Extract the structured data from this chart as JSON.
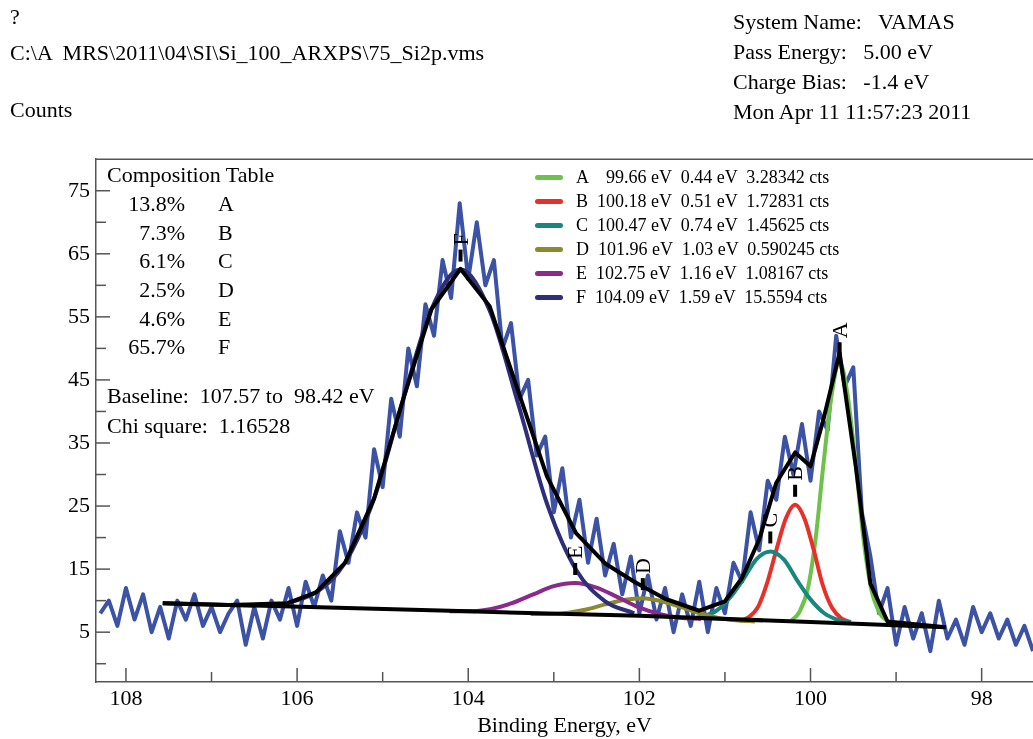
{
  "chart_data": {
    "type": "line",
    "title": "?",
    "subtitle": "C:\\A  MRS\\2011\\04\\SI\\Si_100_ARXPS\\75_Si2p.vms",
    "xlabel": "Binding Energy, eV",
    "ylabel": "Counts",
    "xlim": [
      108.35,
      97.4
    ],
    "xticks": [
      108,
      {
        "value": 107,
        "label": null
      },
      106,
      {
        "value": 105,
        "label": null
      },
      104,
      {
        "value": 103,
        "label": null
      },
      102,
      {
        "value": 101,
        "label": null
      },
      100,
      {
        "value": 99,
        "label": null
      },
      98
    ],
    "ylim": [
      -2.9,
      80
    ],
    "yticks": [
      {
        "value": 0,
        "label": null
      },
      5,
      {
        "value": 10,
        "label": null
      },
      15,
      {
        "value": 20,
        "label": null
      },
      25,
      {
        "value": 30,
        "label": null
      },
      35,
      {
        "value": 40,
        "label": null
      },
      45,
      {
        "value": 50,
        "label": null
      },
      55,
      {
        "value": 60,
        "label": null
      },
      65,
      {
        "value": 70,
        "label": null
      },
      75
    ],
    "grid": false,
    "legend": "top",
    "series": [
      {
        "color": "#3b52a5",
        "x": [
          108.3,
          108.2,
          108.1,
          108.0,
          107.9,
          107.8,
          107.7,
          107.6,
          107.5,
          107.4,
          107.3,
          107.2,
          107.1,
          107.0,
          106.9,
          106.8,
          106.7,
          106.6,
          106.5,
          106.4,
          106.3,
          106.2,
          106.1,
          106.0,
          105.9,
          105.8,
          105.7,
          105.6,
          105.5,
          105.4,
          105.3,
          105.2,
          105.1,
          105.0,
          104.9,
          104.8,
          104.7,
          104.6,
          104.5,
          104.4,
          104.3,
          104.2,
          104.1,
          104.0,
          103.9,
          103.8,
          103.7,
          103.6,
          103.5,
          103.4,
          103.3,
          103.2,
          103.1,
          103.0,
          102.9,
          102.8,
          102.7,
          102.6,
          102.5,
          102.4,
          102.3,
          102.2,
          102.1,
          102.0,
          101.9,
          101.8,
          101.7,
          101.6,
          101.5,
          101.4,
          101.3,
          101.2,
          101.1,
          101.0,
          100.9,
          100.8,
          100.7,
          100.6,
          100.5,
          100.4,
          100.3,
          100.2,
          100.1,
          100.0,
          99.9,
          99.8,
          99.7,
          99.6,
          99.5,
          99.4,
          99.3,
          99.2,
          99.1,
          99.0,
          98.9,
          98.8,
          98.7,
          98.6,
          98.5,
          98.4,
          98.3,
          98.2,
          98.1,
          98.0,
          97.9,
          97.8,
          97.7,
          97.6,
          97.5,
          97.4
        ],
        "values": [
          8,
          10,
          6,
          12,
          7,
          11,
          5,
          9,
          4,
          10,
          7,
          11,
          6,
          9,
          5,
          8,
          10,
          3,
          9,
          4,
          10,
          7,
          12,
          6,
          13,
          9,
          14,
          10,
          21,
          16,
          24,
          20,
          34,
          28,
          42,
          36,
          50,
          44,
          57,
          52,
          64,
          58,
          73,
          61,
          70,
          60,
          64,
          50,
          54,
          42,
          45,
          33,
          36,
          24,
          31,
          20,
          26,
          16,
          23,
          14,
          19,
          11,
          17,
          8,
          14,
          7,
          12,
          5,
          11,
          6,
          13,
          5,
          12,
          8,
          16,
          13,
          24,
          18,
          29,
          26,
          36,
          30,
          38,
          29,
          40,
          37,
          52,
          44,
          47,
          24,
          17,
          8,
          12,
          3,
          9,
          4,
          8,
          2,
          10,
          4,
          7,
          3,
          9,
          5,
          8,
          4,
          7,
          3,
          6,
          2
        ]
      },
      {
        "name": "A    99.66 eV  0.44 eV  3.28342 cts",
        "color": "#6cc24a",
        "x": [
          100.22,
          100.13,
          100.03,
          99.94,
          99.85,
          99.75,
          99.66,
          99.57,
          99.47,
          99.38,
          99.29,
          99.19,
          99.1
        ],
        "values": [
          6.9,
          8.2,
          12.0,
          19.9,
          31.5,
          42.9,
          47.8,
          42.9,
          31.5,
          19.7,
          11.8,
          8.0,
          6.7
        ]
      },
      {
        "name": "B  100.18 eV  0.51 eV  1.72831 cts",
        "color": "#e8302a",
        "x": [
          100.83,
          100.72,
          100.61,
          100.51,
          100.4,
          100.29,
          100.18,
          100.07,
          99.96,
          99.86,
          99.75,
          99.64,
          99.53
        ],
        "values": [
          6.8,
          7.4,
          9.1,
          12.7,
          18.0,
          23.0,
          25.2,
          23.0,
          17.9,
          12.6,
          8.9,
          7.2,
          6.6
        ]
      },
      {
        "name": "C  100.47 eV  0.74 eV  1.45625 cts",
        "color": "#17877f",
        "x": [
          101.41,
          101.26,
          101.1,
          100.94,
          100.78,
          100.63,
          100.47,
          100.31,
          100.16,
          100.0,
          99.84,
          99.69,
          99.53
        ],
        "values": [
          7.1,
          7.5,
          8.4,
          10.5,
          13.5,
          16.6,
          17.8,
          16.5,
          13.3,
          10.2,
          8.0,
          7.0,
          6.5
        ]
      },
      {
        "name": "D  101.96 eV  1.03 eV  0.590245 cts",
        "color": "#8b8b2e",
        "x": [
          103.27,
          103.05,
          102.83,
          102.62,
          102.4,
          102.18,
          101.96,
          101.74,
          101.52,
          101.3,
          101.09,
          100.87,
          100.65
        ],
        "values": [
          7.9,
          7.9,
          8.1,
          8.6,
          9.4,
          10.1,
          10.4,
          9.9,
          9.0,
          8.0,
          7.3,
          6.9,
          6.7
        ]
      },
      {
        "name": "E  102.75 eV  1.16 eV  1.08167 cts",
        "color": "#8b2a8a",
        "x": [
          104.22,
          103.98,
          103.73,
          103.49,
          103.24,
          103.0,
          102.75,
          102.51,
          102.26,
          102.02,
          101.77,
          101.53,
          101.28
        ],
        "values": [
          8.3,
          8.3,
          8.7,
          9.6,
          11.0,
          12.3,
          12.8,
          12.1,
          10.6,
          9.0,
          7.9,
          7.3,
          7.1
        ]
      },
      {
        "name": "F  104.09 eV  1.59 eV  15.5594 cts",
        "color": "#2e2e7a",
        "x": [
          106.11,
          105.78,
          105.44,
          105.1,
          104.77,
          104.43,
          104.09,
          103.75,
          103.41,
          103.08,
          102.74,
          102.4,
          102.06
        ],
        "values": [
          9.6,
          11.3,
          16.0,
          26.2,
          41.5,
          56.2,
          62.5,
          56.0,
          40.9,
          25.4,
          14.9,
          9.9,
          8.0
        ]
      },
      {
        "color": "#000000",
        "x": [
          107.57,
          106.8,
          106.11,
          105.78,
          105.44,
          105.1,
          104.77,
          104.43,
          104.09,
          103.75,
          103.41,
          103.08,
          102.74,
          102.4,
          102.06,
          101.7,
          101.3,
          101.0,
          100.8,
          100.6,
          100.4,
          100.18,
          100.0,
          99.85,
          99.66,
          99.47,
          99.3,
          99.1,
          98.42
        ],
        "values": [
          9.6,
          9.3,
          9.6,
          11.3,
          16.0,
          26.2,
          41.5,
          56.2,
          62.6,
          56.7,
          43.0,
          29.7,
          20.7,
          15.9,
          13.0,
          10.3,
          8.4,
          9.9,
          13.6,
          19.7,
          28.7,
          33.5,
          31.3,
          38.7,
          49.3,
          31.2,
          12.7,
          6.7,
          5.8
        ]
      },
      {
        "color": "#000000",
        "x": [
          107.57,
          104,
          102,
          100,
          98.42
        ],
        "values": [
          9.6,
          8.3,
          7.6,
          6.6,
          5.8
        ]
      }
    ],
    "annotations": [
      "System Name:   VAMAS",
      "Pass Energy:   5.00 eV",
      "Charge Bias:   -1.4 eV",
      "Mon Apr 11 11:57:23 2011",
      "Composition Table",
      "13.8%  A",
      "7.3%  B",
      "6.1%  C",
      "2.5%  D",
      "4.6%  E",
      "65.7%  F",
      "Baseline:  107.57 to  98.42 eV",
      "Chi square:  1.16528",
      {
        "text": "A",
        "x": 99.66,
        "y": 47.8
      },
      {
        "text": "B",
        "x": 100.18,
        "y": 25.2
      },
      {
        "text": "C",
        "x": 100.47,
        "y": 17.8
      },
      {
        "text": "D",
        "x": 101.96,
        "y": 10.4
      },
      {
        "text": "E",
        "x": 102.75,
        "y": 12.8
      },
      {
        "text": "F",
        "x": 104.09,
        "y": 62.5
      }
    ]
  }
}
